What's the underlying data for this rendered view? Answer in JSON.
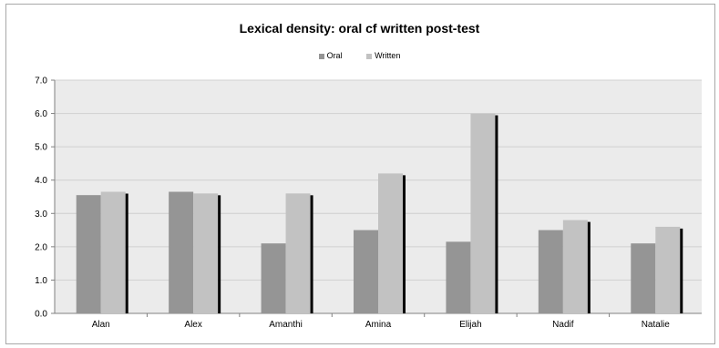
{
  "chart_data": {
    "type": "bar",
    "title": "Lexical density: oral cf written post-test",
    "xlabel": "",
    "ylabel": "",
    "ylim": [
      0,
      7
    ],
    "yticks": [
      "0.0",
      "1.0",
      "2.0",
      "3.0",
      "4.0",
      "5.0",
      "6.0",
      "7.0"
    ],
    "categories": [
      "Alan",
      "Alex",
      "Amanthi",
      "Amina",
      "Elijah",
      "Nadif",
      "Natalie"
    ],
    "series": [
      {
        "name": "Oral",
        "color": "#959595",
        "values": [
          3.55,
          3.65,
          2.1,
          2.5,
          2.15,
          2.5,
          2.1
        ]
      },
      {
        "name": "Written",
        "color": "#c2c2c2",
        "values": [
          3.65,
          3.6,
          3.6,
          4.2,
          6.0,
          2.8,
          2.6
        ]
      }
    ],
    "grid": true,
    "legend_position": "top-center",
    "plot_background": "#ebebeb"
  }
}
